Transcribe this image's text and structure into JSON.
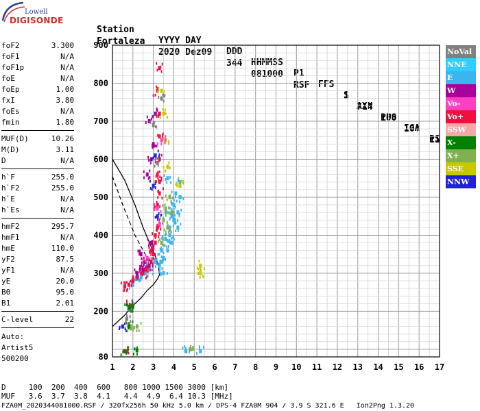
{
  "logo": {
    "small": "Lowell",
    "big": "DIGISONDE"
  },
  "header": {
    "row1": [
      "Station",
      "YYYY DAY",
      "DDD",
      "HHMMSS",
      "P1",
      "FFS",
      "S",
      "AXN",
      "PPS",
      "IGA",
      "PS"
    ],
    "row2": [
      "Fortaleza",
      "2020 Dez09",
      "344",
      "081000",
      "RSF",
      "1",
      "714",
      "100",
      "10+",
      "11"
    ]
  },
  "params": [
    {
      "group": [
        {
          "k": "foF2",
          "v": "3.300"
        },
        {
          "k": "foF1",
          "v": "N/A"
        },
        {
          "k": "foF1p",
          "v": "N/A"
        },
        {
          "k": "foE",
          "v": "N/A"
        },
        {
          "k": "foEp",
          "v": "1.00"
        },
        {
          "k": "fxI",
          "v": "3.80"
        },
        {
          "k": "foEs",
          "v": "N/A"
        },
        {
          "k": "fmin",
          "v": "1.80"
        }
      ]
    },
    {
      "group": [
        {
          "k": "MUF(D)",
          "v": "10.26"
        },
        {
          "k": "M(D)",
          "v": "3.11"
        },
        {
          "k": "D",
          "v": "N/A"
        }
      ]
    },
    {
      "group": [
        {
          "k": "h`F",
          "v": "255.0"
        },
        {
          "k": "h`F2",
          "v": "255.0"
        },
        {
          "k": "h`E",
          "v": "N/A"
        },
        {
          "k": "h`Es",
          "v": "N/A"
        }
      ]
    },
    {
      "group": [
        {
          "k": "hmF2",
          "v": "295.7"
        },
        {
          "k": "hmF1",
          "v": "N/A"
        },
        {
          "k": "hmE",
          "v": "110.0"
        },
        {
          "k": "yF2",
          "v": "87.5"
        },
        {
          "k": "yF1",
          "v": "N/A"
        },
        {
          "k": "yE",
          "v": "20.0"
        },
        {
          "k": "B0",
          "v": "95.0"
        },
        {
          "k": "B1",
          "v": "2.01"
        }
      ]
    },
    {
      "group": [
        {
          "k": "C-level",
          "v": "22"
        }
      ]
    }
  ],
  "auto": [
    "Auto:",
    "Artist5",
    "500200"
  ],
  "legend": [
    {
      "label": "NoVal",
      "color": "#808080"
    },
    {
      "label": "NNE",
      "color": "#33ccff"
    },
    {
      "label": "E",
      "color": "#3cb4f0"
    },
    {
      "label": "W",
      "color": "#a8009a"
    },
    {
      "label": "Vo-",
      "color": "#ff40c0"
    },
    {
      "label": "Vo+",
      "color": "#f01040"
    },
    {
      "label": "SSW",
      "color": "#f4a8a8"
    },
    {
      "label": "X-",
      "color": "#008000"
    },
    {
      "label": "X+",
      "color": "#80b050"
    },
    {
      "label": "SSE",
      "color": "#c8c800"
    },
    {
      "label": "NNW",
      "color": "#2020d8"
    }
  ],
  "footer": {
    "d_row": "D     100  200  400  600   800 1000 1500 3000 [km]",
    "muf_row": "MUF   3.6  3.7  3.8  4.1   4.4  4.9  6.4 10.3 [MHz]",
    "file_row": "FZA0M_2020344081000.RSF / 320fx256h 50 kHz 5.0 km / DPS-4 FZA0M 904 / 3.9 S 321.6 E   Ion2Png 1.3.20"
  },
  "chart_data": {
    "type": "scatter",
    "title": "",
    "xlabel": "",
    "ylabel": "",
    "xlim": [
      1,
      17
    ],
    "ylim": [
      80,
      900
    ],
    "x_ticks": [
      "1",
      "2",
      "3",
      "4",
      "5",
      "6",
      "7",
      "8",
      "9",
      "10",
      "11",
      "12",
      "13",
      "14",
      "15",
      "16",
      "17"
    ],
    "y_ticks": [
      "80",
      "200",
      "300",
      "400",
      "500",
      "600",
      "700",
      "800",
      "900"
    ],
    "grid": true,
    "legend_position": "right",
    "series": [
      {
        "name": "E",
        "color": "#3cb4f0",
        "points": [
          [
            2.0,
            270
          ],
          [
            2.4,
            290
          ],
          [
            2.8,
            310
          ],
          [
            3.1,
            330
          ],
          [
            3.4,
            360
          ],
          [
            3.6,
            390
          ],
          [
            3.8,
            420
          ],
          [
            3.9,
            450
          ],
          [
            4.0,
            480
          ],
          [
            4.1,
            510
          ],
          [
            4.2,
            460
          ],
          [
            4.2,
            420
          ],
          [
            3.9,
            380
          ],
          [
            3.7,
            360
          ],
          [
            3.5,
            340
          ],
          [
            3.3,
            320
          ],
          [
            4.3,
            500
          ],
          [
            3.6,
            470
          ],
          [
            4.0,
            440
          ],
          [
            3.8,
            400
          ],
          [
            3.5,
            300
          ],
          [
            3.4,
            330
          ],
          [
            4.6,
            95
          ],
          [
            5.3,
            95
          ],
          [
            1.9,
            210
          ],
          [
            3.7,
            550
          ],
          [
            4.3,
            540
          ],
          [
            2.2,
            285
          ],
          [
            2.6,
            300
          ]
        ]
      },
      {
        "name": "Vo+",
        "color": "#f01040",
        "points": [
          [
            1.6,
            265
          ],
          [
            1.8,
            270
          ],
          [
            2.0,
            280
          ],
          [
            2.2,
            290
          ],
          [
            2.5,
            300
          ],
          [
            2.7,
            315
          ],
          [
            2.9,
            330
          ],
          [
            3.0,
            350
          ],
          [
            3.1,
            380
          ],
          [
            3.2,
            420
          ],
          [
            3.2,
            480
          ],
          [
            3.3,
            540
          ],
          [
            3.3,
            600
          ],
          [
            3.3,
            660
          ],
          [
            3.3,
            720
          ],
          [
            3.2,
            780
          ],
          [
            3.3,
            840
          ],
          [
            1.9,
            215
          ],
          [
            1.7,
            95
          ],
          [
            3.1,
            400
          ],
          [
            2.9,
            360
          ],
          [
            3.3,
            510
          ],
          [
            3.2,
            560
          ],
          [
            2.6,
            310
          ]
        ]
      },
      {
        "name": "W",
        "color": "#a8009a",
        "points": [
          [
            2.4,
            350
          ],
          [
            2.6,
            330
          ],
          [
            2.8,
            320
          ],
          [
            2.9,
            380
          ],
          [
            3.0,
            640
          ],
          [
            2.8,
            700
          ],
          [
            2.7,
            560
          ],
          [
            3.1,
            720
          ],
          [
            2.9,
            600
          ],
          [
            2.5,
            310
          ],
          [
            2.2,
            300
          ]
        ]
      },
      {
        "name": "X+",
        "color": "#80b050",
        "points": [
          [
            3.6,
            470
          ],
          [
            3.7,
            420
          ],
          [
            3.8,
            500
          ],
          [
            3.4,
            380
          ],
          [
            4.8,
            100
          ],
          [
            1.9,
            155
          ],
          [
            2.2,
            160
          ],
          [
            3.5,
            440
          ],
          [
            3.9,
            460
          ]
        ]
      },
      {
        "name": "X-",
        "color": "#008000",
        "points": [
          [
            1.8,
            210
          ],
          [
            2.0,
            212
          ],
          [
            1.6,
            95
          ],
          [
            2.2,
            97
          ],
          [
            1.8,
            160
          ]
        ]
      },
      {
        "name": "SSE",
        "color": "#c8c800",
        "points": [
          [
            3.4,
            780
          ],
          [
            3.5,
            720
          ],
          [
            3.6,
            650
          ],
          [
            5.3,
            320
          ],
          [
            5.3,
            300
          ],
          [
            3.7,
            580
          ],
          [
            4.3,
            530
          ]
        ]
      },
      {
        "name": "NNW",
        "color": "#2020d8",
        "points": [
          [
            3.2,
            450
          ],
          [
            3.1,
            610
          ],
          [
            3.0,
            530
          ],
          [
            1.5,
            160
          ]
        ]
      },
      {
        "name": "Vo-",
        "color": "#ff40c0",
        "points": [
          [
            3.3,
            430
          ],
          [
            3.2,
            470
          ],
          [
            2.7,
            340
          ],
          [
            3.4,
            650
          ]
        ]
      },
      {
        "name": "NoVal",
        "color": "#808080",
        "points": [
          [
            3.0,
            690
          ],
          [
            3.4,
            760
          ],
          [
            1.7,
            180
          ],
          [
            3.2,
            590
          ]
        ]
      }
    ],
    "profile_solid": [
      [
        1.0,
        160
      ],
      [
        1.6,
        190
      ],
      [
        2.0,
        215
      ],
      [
        2.4,
        235
      ],
      [
        2.7,
        255
      ],
      [
        3.0,
        270
      ],
      [
        3.2,
        285
      ],
      [
        3.3,
        296
      ],
      [
        3.25,
        320
      ],
      [
        3.1,
        345
      ],
      [
        2.85,
        375
      ],
      [
        2.5,
        420
      ],
      [
        2.1,
        480
      ],
      [
        1.6,
        545
      ],
      [
        1.0,
        600
      ]
    ],
    "profile_dashed": [
      [
        1.0,
        555
      ],
      [
        1.5,
        480
      ],
      [
        2.1,
        400
      ],
      [
        2.6,
        350
      ],
      [
        3.0,
        320
      ]
    ]
  }
}
